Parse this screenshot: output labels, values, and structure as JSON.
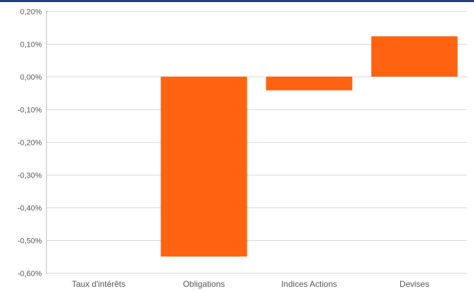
{
  "chart_data": {
    "type": "bar",
    "title": "",
    "xlabel": "",
    "ylabel": "",
    "categories": [
      "Taux d'intérêts",
      "Obligations",
      "Indices Actions",
      "Devises"
    ],
    "values": [
      0.0,
      -0.55,
      -0.042,
      0.123
    ],
    "ylim": [
      -0.6,
      0.2
    ],
    "yticks": [
      0.2,
      0.1,
      0.0,
      -0.1,
      -0.2,
      -0.3,
      -0.4,
      -0.5,
      -0.6
    ],
    "ytick_labels": [
      "0,20%",
      "0,10%",
      "0,00%",
      "-0,10%",
      "-0,20%",
      "-0,30%",
      "-0,40%",
      "-0,50%",
      "-0,60%"
    ],
    "unit": "%",
    "grid": true,
    "legend": "none",
    "bar_color": "#ff6310",
    "header_rule_color": "#1f3f7a"
  }
}
